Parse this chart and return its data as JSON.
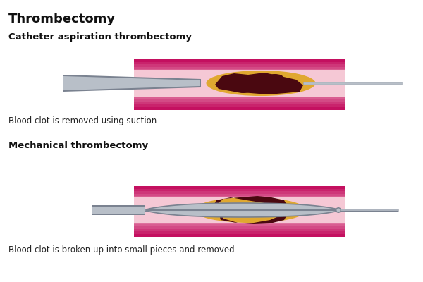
{
  "title": "Thrombectomy",
  "subtitle1": "Catheter aspiration thrombectomy",
  "caption1": "Blood clot is removed using suction",
  "subtitle2": "Mechanical thrombectomy",
  "caption2": "Blood clot is broken up into small pieces and removed",
  "bg_color": "#ffffff",
  "vessel_outer_color": "#c41060",
  "vessel_mid_color": "#e06090",
  "vessel_inner_color": "#f5c8d5",
  "clot_dark_color": "#4a0810",
  "clot_yellow_color": "#e0a830",
  "catheter_light": "#b8bfc8",
  "catheter_dark": "#7a8290",
  "wire_color": "#9098a8"
}
